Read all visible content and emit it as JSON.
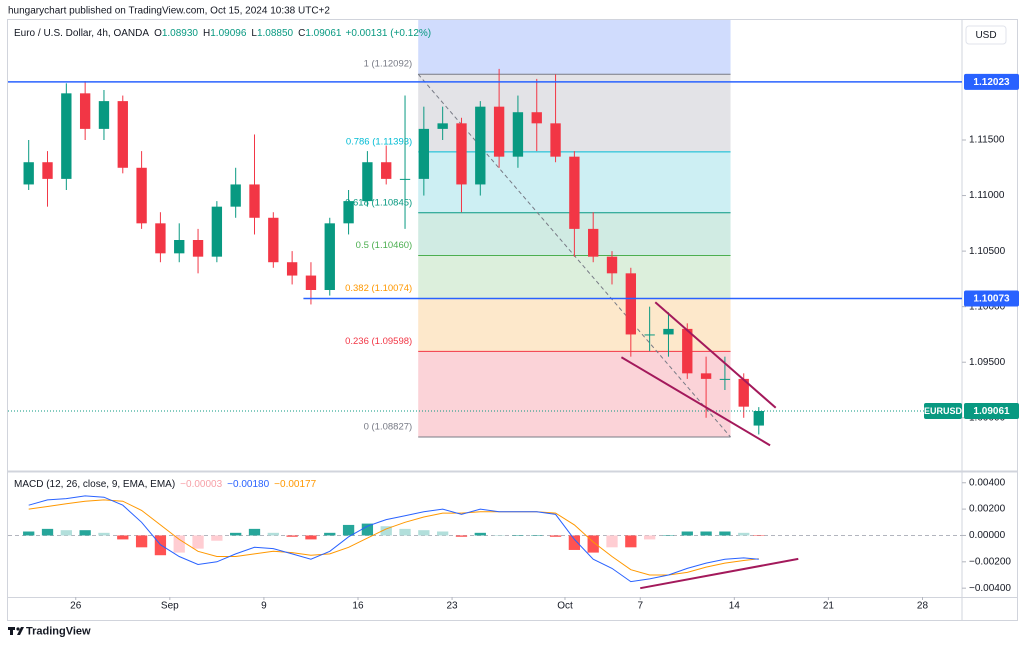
{
  "header": {
    "byline": "hungarychart published on TradingView.com, Oct 15, 2024 10:38 UTC+2",
    "logo": "TradingView"
  },
  "chart_data": [
    {
      "type": "candlestick",
      "legend": {
        "symbol": "Euro / U.S. Dollar, 4h, OANDA",
        "fields": [
          {
            "key": "O",
            "value": "1.08930"
          },
          {
            "key": "H",
            "value": "1.09096"
          },
          {
            "key": "L",
            "value": "1.08850"
          },
          {
            "key": "C",
            "value": "1.09061"
          }
        ],
        "change": "+0.00131 (+0.12%)",
        "color": "#089981"
      },
      "currency": "USD",
      "x": [
        -2.5,
        -1.5,
        -0.5,
        0.5,
        1.5,
        2.5,
        3.5,
        4.5,
        5.5,
        6.5,
        7.5,
        8.5,
        9.5,
        10.5,
        11.5,
        12.5,
        13.5,
        14.5,
        15.5,
        16.5,
        17.5,
        18.5,
        19.5,
        20.5,
        21.5,
        22.5,
        23.5,
        24.5,
        25.5,
        26.5,
        27.5,
        28.5,
        29.5,
        30.5,
        31.5,
        32.5,
        33.5,
        34.5,
        35.5,
        36.3
      ],
      "open": [
        1.111,
        1.113,
        1.1115,
        1.1192,
        1.116,
        1.1185,
        1.1125,
        1.1075,
        1.1048,
        1.106,
        1.1045,
        1.109,
        1.111,
        1.108,
        1.104,
        1.1028,
        1.1015,
        1.1075,
        1.1095,
        1.113,
        1.1115,
        1.1115,
        1.116,
        1.1165,
        1.111,
        1.118,
        1.1135,
        1.1175,
        1.1165,
        1.1135,
        1.107,
        1.1045,
        1.103,
        1.0975,
        1.0975,
        1.098,
        1.094,
        1.0935,
        1.0935,
        1.0893
      ],
      "high": [
        1.115,
        1.114,
        1.1201,
        1.1203,
        1.1195,
        1.119,
        1.114,
        1.1085,
        1.1075,
        1.107,
        1.1095,
        1.1125,
        1.1155,
        1.1085,
        1.105,
        1.104,
        1.108,
        1.1105,
        1.114,
        1.1145,
        1.119,
        1.118,
        1.118,
        1.117,
        1.1185,
        1.1214,
        1.119,
        1.1205,
        1.1209,
        1.114,
        1.1085,
        1.105,
        1.1035,
        1.1,
        1.0995,
        1.0985,
        1.0955,
        1.0955,
        1.094,
        1.09096
      ],
      "low": [
        1.1105,
        1.109,
        1.1105,
        1.115,
        1.115,
        1.112,
        1.107,
        1.104,
        1.104,
        1.103,
        1.104,
        1.108,
        1.1065,
        1.1035,
        1.102,
        1.1002,
        1.101,
        1.1065,
        1.109,
        1.111,
        1.107,
        1.11,
        1.115,
        1.1085,
        1.11,
        1.1125,
        1.1125,
        1.114,
        1.113,
        1.1045,
        1.104,
        1.102,
        1.0955,
        1.096,
        1.0955,
        1.0935,
        1.09,
        1.0925,
        1.09,
        1.0885
      ],
      "close": [
        1.113,
        1.1115,
        1.1192,
        1.116,
        1.1185,
        1.1125,
        1.1075,
        1.1048,
        1.106,
        1.1045,
        1.109,
        1.111,
        1.108,
        1.104,
        1.1028,
        1.1015,
        1.1075,
        1.1095,
        1.113,
        1.1115,
        1.1115,
        1.116,
        1.1165,
        1.111,
        1.118,
        1.1135,
        1.1175,
        1.1165,
        1.1135,
        1.107,
        1.1045,
        1.103,
        1.0975,
        1.0975,
        1.098,
        1.094,
        1.0935,
        1.0935,
        1.091,
        1.09061
      ],
      "up_color": "#089981",
      "down_color": "#f23645",
      "xlim": [
        -3.6,
        47.1
      ],
      "xticks": [
        {
          "value": 0,
          "label": "26"
        },
        {
          "value": 5,
          "label": "Sep"
        },
        {
          "value": 10,
          "label": "9"
        },
        {
          "value": 15,
          "label": "16"
        },
        {
          "value": 20,
          "label": "23"
        },
        {
          "value": 26,
          "label": "Oct"
        },
        {
          "value": 30,
          "label": "7"
        },
        {
          "value": 35,
          "label": "14"
        },
        {
          "value": 40,
          "label": "21"
        },
        {
          "value": 45,
          "label": "28"
        }
      ],
      "ylim": [
        1.0853,
        1.1258
      ],
      "yticks": [
        {
          "value": 1.09,
          "label": "1.09000"
        },
        {
          "value": 1.095,
          "label": "1.09500"
        },
        {
          "value": 1.1,
          "label": "1.10000"
        },
        {
          "value": 1.105,
          "label": "1.10500"
        },
        {
          "value": 1.11,
          "label": "1.11000"
        },
        {
          "value": 1.115,
          "label": "1.11500"
        }
      ],
      "grid": false,
      "hlines": [
        {
          "value": 1.12023,
          "from": -3.6,
          "color": "#2962ff"
        },
        {
          "value": 1.10073,
          "from": 12.1,
          "color": "#2962ff"
        }
      ],
      "last_price": {
        "value": 1.09061,
        "symbol": "EURUSD",
        "color": "#089981"
      },
      "fib": {
        "x": [
          18.2,
          34.8
        ],
        "top_fill": "#d0dcfd",
        "levels": [
          {
            "value": 1.12092,
            "label": "1 (1.12092)",
            "color": "#787b86",
            "fill": "#e3e3e7"
          },
          {
            "value": 1.11393,
            "label": "0.786 (1.11393)",
            "color": "#00bcd4",
            "fill": "#cdeff3"
          },
          {
            "value": 1.10845,
            "label": "0.618 (1.10845)",
            "color": "#089981",
            "fill": "#d0ebe3"
          },
          {
            "value": 1.1046,
            "label": "0.5 (1.10460)",
            "color": "#4caf50",
            "fill": "#dcefdc"
          },
          {
            "value": 1.10074,
            "label": "0.382 (1.10074)",
            "color": "#ff9800",
            "fill": "#fde8cb"
          },
          {
            "value": 1.09598,
            "label": "0.236 (1.09598)",
            "color": "#f23645",
            "fill": "#fbd3d8"
          },
          {
            "value": 1.08827,
            "label": "0 (1.08827)",
            "color": "#787b86"
          }
        ]
      },
      "trendlines": [
        {
          "points": [
            [
              30.8,
              1.1004
            ],
            [
              37.2,
              1.0909
            ]
          ],
          "color": "#a3195b"
        },
        {
          "points": [
            [
              29.0,
              1.09545
            ],
            [
              36.9,
              1.08752
            ]
          ],
          "color": "#a3195b"
        }
      ]
    },
    {
      "type": "macd",
      "title": "MACD (12, 26, close, 9, EMA, EMA)",
      "legend": [
        {
          "text": "−0.00003",
          "color": "#f7a1a8"
        },
        {
          "text": "−0.00180",
          "color": "#2962ff"
        },
        {
          "text": "−0.00177",
          "color": "#ff9800"
        }
      ],
      "x": [
        -2.5,
        -1.5,
        -0.5,
        0.5,
        1.5,
        2.5,
        3.5,
        4.5,
        5.5,
        6.5,
        7.5,
        8.5,
        9.5,
        10.5,
        11.5,
        12.5,
        13.5,
        14.5,
        15.5,
        16.5,
        17.5,
        18.5,
        19.5,
        20.5,
        21.5,
        22.5,
        23.5,
        24.5,
        25.5,
        26.5,
        27.5,
        28.5,
        29.5,
        30.5,
        31.5,
        32.5,
        33.5,
        34.5,
        35.5,
        36.3
      ],
      "macd": {
        "color": "#2962ff",
        "values": [
          0.0023,
          0.0027,
          0.0028,
          0.003,
          0.0029,
          0.0023,
          0.001,
          -0.0007,
          -0.0016,
          -0.0022,
          -0.002,
          -0.0014,
          -0.0009,
          -0.001,
          -0.0014,
          -0.0018,
          -0.0012,
          -0.0001,
          0.0007,
          0.0012,
          0.0015,
          0.0018,
          0.002,
          0.0016,
          0.002,
          0.0018,
          0.0018,
          0.0018,
          0.0016,
          -0.0003,
          -0.0018,
          -0.0025,
          -0.0035,
          -0.0033,
          -0.003,
          -0.0025,
          -0.0021,
          -0.0018,
          -0.0017,
          -0.0018
        ]
      },
      "signal": {
        "color": "#ff9800",
        "values": [
          0.002,
          0.0022,
          0.0024,
          0.0026,
          0.0027,
          0.0026,
          0.0019,
          0.0008,
          -0.0003,
          -0.0012,
          -0.0016,
          -0.0016,
          -0.0014,
          -0.0012,
          -0.0013,
          -0.0015,
          -0.0014,
          -0.0009,
          -0.0002,
          0.0005,
          0.001,
          0.0014,
          0.0017,
          0.0017,
          0.0018,
          0.0018,
          0.0018,
          0.0018,
          0.0017,
          0.0008,
          -0.0005,
          -0.0016,
          -0.0026,
          -0.003,
          -0.003,
          -0.0028,
          -0.0024,
          -0.0021,
          -0.0019,
          -0.00177
        ]
      },
      "histogram": {
        "values": [
          0.0003,
          0.0005,
          0.0004,
          0.0004,
          0.0002,
          -0.0003,
          -0.0009,
          -0.0015,
          -0.0013,
          -0.001,
          -0.0004,
          0.0002,
          0.0005,
          0.0002,
          -0.0001,
          -0.0003,
          0.0002,
          0.0008,
          0.0009,
          0.0007,
          0.0005,
          0.0004,
          0.0003,
          -0.0001,
          0.0002,
          0,
          0,
          0,
          -0.0001,
          -0.0011,
          -0.0013,
          -0.0009,
          -0.0009,
          -0.0003,
          0,
          0.0003,
          0.0003,
          0.0003,
          0.0002,
          -3e-05
        ],
        "colors": {
          "rise_pos": "#26a69a",
          "fall_pos": "#b2dfdb",
          "fall_neg": "#ff5252",
          "rise_neg": "#ffcdd2"
        }
      },
      "xlim": [
        -3.6,
        47.1
      ],
      "ylim": [
        -0.00467,
        0.00474
      ],
      "yticks": [
        {
          "value": 0.004,
          "label": "0.00400"
        },
        {
          "value": 0.002,
          "label": "0.00200"
        },
        {
          "value": 0,
          "label": "0.00000"
        },
        {
          "value": -0.002,
          "label": "−0.00200"
        },
        {
          "value": -0.004,
          "label": "−0.00400"
        }
      ],
      "zero_line": true,
      "trendlines": [
        {
          "points": [
            [
              30.0,
              -0.004
            ],
            [
              38.4,
              -0.00178
            ]
          ],
          "color": "#a3195b"
        }
      ]
    }
  ]
}
